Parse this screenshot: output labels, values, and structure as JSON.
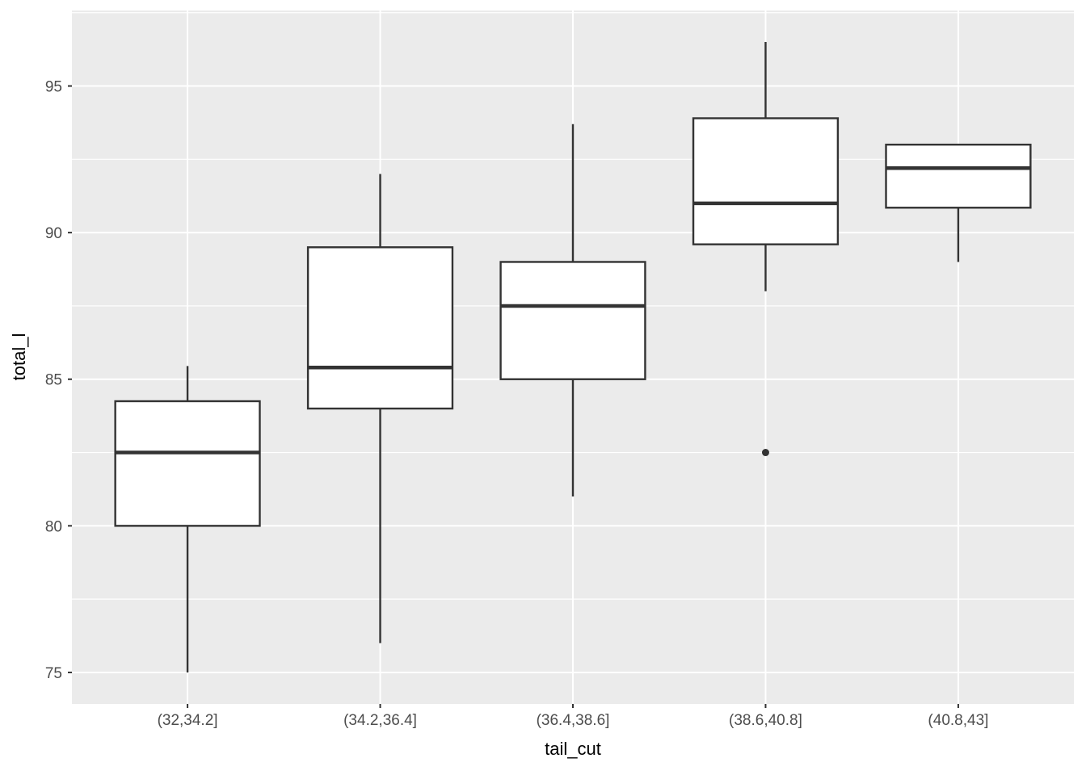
{
  "chart_data": {
    "type": "boxplot",
    "title": "",
    "xlabel": "tail_cut",
    "ylabel": "total_l",
    "categories": [
      "(32,34.2]",
      "(34.2,36.4]",
      "(36.4,38.6]",
      "(38.6,40.8]",
      "(40.8,43]"
    ],
    "series": [
      {
        "category": "(32,34.2]",
        "min": 75,
        "q1": 80,
        "median": 82.5,
        "q3": 84.25,
        "max": 85.45,
        "outliers": []
      },
      {
        "category": "(34.2,36.4]",
        "min": 76,
        "q1": 84,
        "median": 85.4,
        "q3": 89.5,
        "max": 92,
        "outliers": []
      },
      {
        "category": "(36.4,38.6]",
        "min": 81,
        "q1": 85,
        "median": 87.5,
        "q3": 89,
        "max": 93.7,
        "outliers": []
      },
      {
        "category": "(38.6,40.8]",
        "min": 88,
        "q1": 89.6,
        "median": 91,
        "q3": 93.9,
        "max": 96.5,
        "outliers": [
          82.5
        ]
      },
      {
        "category": "(40.8,43]",
        "min": 89,
        "q1": 90.85,
        "median": 92.2,
        "q3": 93,
        "max": 93,
        "outliers": []
      }
    ],
    "y_axis": {
      "tick_labels": [
        "75",
        "80",
        "85",
        "90",
        "95"
      ],
      "ticks": [
        75,
        80,
        85,
        90,
        95
      ],
      "minor_ticks": [
        77.5,
        82.5,
        87.5,
        92.5,
        97.5
      ],
      "ylim": [
        73.925,
        97.575
      ]
    },
    "x_axis": {
      "type": "discrete",
      "expand": 0.6,
      "box_width": 0.75
    },
    "grid": "major-horizontal, minor-horizontal, major-vertical-at-categories",
    "legend": "none",
    "colors": {
      "panel_background": "#EBEBEB",
      "grid": "#FFFFFF",
      "box_fill": "#FFFFFF",
      "box_stroke": "#333333",
      "median_stroke": "#333333",
      "outlier_fill": "#333333",
      "tick_mark": "#333333",
      "tick_label": "#4D4D4D",
      "axis_title": "#000000"
    }
  }
}
